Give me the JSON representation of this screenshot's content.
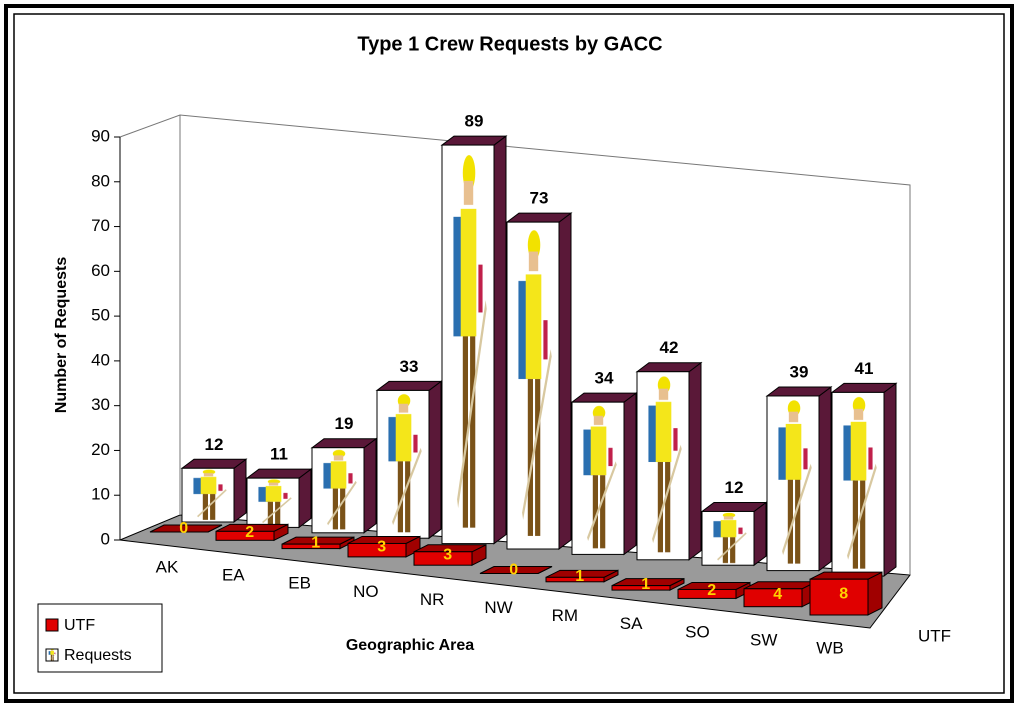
{
  "chart_data": {
    "type": "bar3d",
    "title": "Type 1 Crew Requests by GACC",
    "x_label": "Geographic Area",
    "y_label": "Number of Requests",
    "categories": [
      "AK",
      "EA",
      "EB",
      "NO",
      "NR",
      "NW",
      "RM",
      "SA",
      "SO",
      "SW",
      "WB"
    ],
    "series": [
      {
        "name": "UTF",
        "color": "#e00000",
        "values": [
          0,
          2,
          1,
          3,
          3,
          0,
          1,
          1,
          2,
          4,
          8
        ]
      },
      {
        "name": "Requests",
        "color": "#ffffff",
        "values": [
          12,
          11,
          19,
          33,
          89,
          73,
          34,
          42,
          12,
          39,
          41
        ]
      }
    ],
    "ylim": [
      0,
      90
    ],
    "yticks": [
      0,
      10,
      20,
      30,
      40,
      50,
      60,
      70,
      80,
      90
    ]
  }
}
